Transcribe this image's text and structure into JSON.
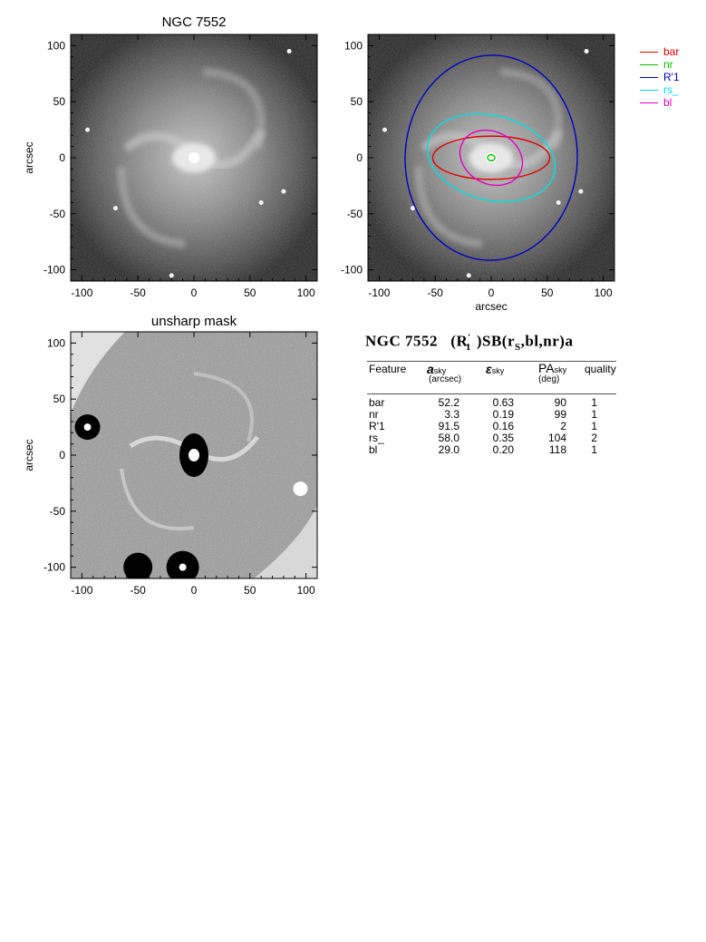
{
  "panels": {
    "top_left": {
      "title": "NGC 7552",
      "ylabel": "arcsec"
    },
    "top_right": {
      "xlabel": "arcsec"
    },
    "bottom_left": {
      "title": "unsharp mask",
      "ylabel": "arcsec"
    }
  },
  "axes": {
    "xticks": [
      "-100",
      "-50",
      "0",
      "50",
      "100"
    ],
    "yticks": [
      "100",
      "50",
      "0",
      "-50",
      "-100"
    ],
    "range": [
      -110,
      110
    ]
  },
  "legend": [
    {
      "label": "bar",
      "color": "#e00000"
    },
    {
      "label": "nr",
      "color": "#00c000"
    },
    {
      "label": "R'1",
      "color": "#0000c0"
    },
    {
      "label": "rs_",
      "color": "#00e0e0"
    },
    {
      "label": "bl",
      "color": "#e000c0"
    }
  ],
  "ellipses": [
    {
      "name": "bar",
      "a": 52.2,
      "eps": 0.63,
      "pa": 90,
      "color": "#e00000"
    },
    {
      "name": "nr",
      "a": 3.3,
      "eps": 0.19,
      "pa": 99,
      "color": "#00c000"
    },
    {
      "name": "R'1",
      "a": 91.5,
      "eps": 0.16,
      "pa": 2,
      "color": "#0000c0"
    },
    {
      "name": "rs_",
      "a": 58.0,
      "eps": 0.35,
      "pa": 104,
      "color": "#00e0e0"
    },
    {
      "name": "bl",
      "a": 29.0,
      "eps": 0.2,
      "pa": 118,
      "color": "#e000c0"
    }
  ],
  "classification": {
    "galaxy": "NGC 7552",
    "type_prefix": "(R",
    "type_sup": "′",
    "type_sub": "1",
    "type_mid": ")SB(r",
    "type_sub2": "S",
    "type_suffix": ",bl,nr)a"
  },
  "table": {
    "headers": {
      "feature": "Feature",
      "a": "a",
      "a_sub": "sky",
      "a_unit": "(arcsec)",
      "eps": "ε",
      "eps_sub": "sky",
      "pa": "PA",
      "pa_sub": "sky",
      "pa_unit": "(deg)",
      "quality": "quality"
    },
    "rows": [
      {
        "feature": "bar",
        "a": "52.2",
        "eps": "0.63",
        "pa": "90",
        "quality": "1"
      },
      {
        "feature": "nr",
        "a": "3.3",
        "eps": "0.19",
        "pa": "99",
        "quality": "1"
      },
      {
        "feature": "R'1",
        "a": "91.5",
        "eps": "0.16",
        "pa": "2",
        "quality": "1"
      },
      {
        "feature": "rs_",
        "a": "58.0",
        "eps": "0.35",
        "pa": "104",
        "quality": "2"
      },
      {
        "feature": "bl",
        "a": "29.0",
        "eps": "0.20",
        "pa": "118",
        "quality": "1"
      }
    ]
  }
}
